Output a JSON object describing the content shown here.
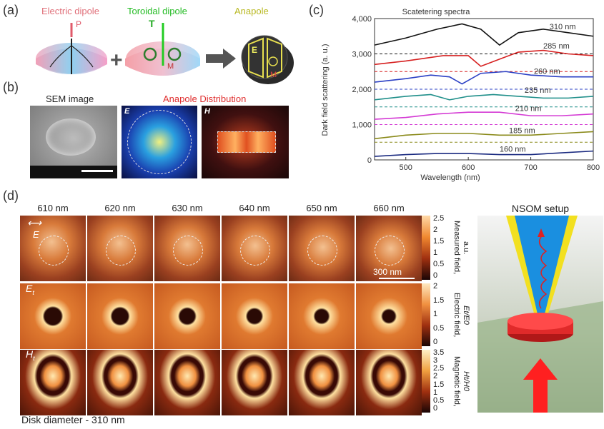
{
  "panel_a": {
    "label": "(a)",
    "electric_title": "Electric dipole",
    "toroidal_title": "Toroidal dipole",
    "anapole_title": "Anapole",
    "p_symbol": "P",
    "t_symbol": "T",
    "m_symbol": "M",
    "e_symbol": "E",
    "plus": "+"
  },
  "panel_b": {
    "label": "(b)",
    "sem_title": "SEM image",
    "anapole_title": "Anapole Distribution",
    "e_label": "E",
    "h_label": "H"
  },
  "panel_c": {
    "label": "(c)"
  },
  "panel_d": {
    "label": "(d)",
    "wavelengths": [
      "610 nm",
      "620 nm",
      "630 nm",
      "640 nm",
      "650 nm",
      "660 nm"
    ],
    "e_arrow_label": "E",
    "row2_label": "E",
    "row2_sub": "t",
    "row3_label": "H",
    "row3_sub": "t",
    "scalebar_label": "300 nm",
    "cb1_ticks": [
      "2.5",
      "2",
      "1.5",
      "1",
      "0.5",
      "0"
    ],
    "cb2_ticks": [
      "2",
      "1.5",
      "1",
      "0.5",
      "0"
    ],
    "cb3_ticks": [
      "3.5",
      "3",
      "2.5",
      "2",
      "1.5",
      "1",
      "0.5",
      "0"
    ],
    "cb1_title": "Measured field,",
    "cb1_unit": "a.u.",
    "cb2_title": "Electric field,",
    "cb2_unit": "Et/E0",
    "cb3_title": "Magnetic field,",
    "cb3_unit": "Ht/H0",
    "caption": "Disk diameter - 310 nm",
    "nsom_title": "NSOM setup"
  },
  "chart_data": {
    "type": "line",
    "title": "Scatetering spectra",
    "xlabel": "Wavelength (nm)",
    "ylabel": "Dark field scattering (a. u.)",
    "xlim": [
      450,
      800
    ],
    "ylim": [
      0,
      4000
    ],
    "xticks": [
      500,
      600,
      700,
      800
    ],
    "yticks": [
      0,
      1000,
      2000,
      3000,
      4000
    ],
    "ytick_labels": [
      "0",
      "1,000",
      "2,000",
      "3,000",
      "4,000"
    ],
    "series": [
      {
        "name": "310 nm",
        "color": "#111111",
        "baseline": 3000,
        "x": [
          450,
          500,
          550,
          590,
          620,
          650,
          680,
          720,
          760,
          800
        ],
        "y": [
          3250,
          3450,
          3700,
          3850,
          3700,
          3250,
          3600,
          3700,
          3600,
          3500
        ]
      },
      {
        "name": "285 nm",
        "color": "#d62020",
        "baseline": 2500,
        "x": [
          450,
          500,
          560,
          600,
          620,
          650,
          680,
          720,
          760,
          800
        ],
        "y": [
          2700,
          2800,
          2950,
          2950,
          2650,
          2850,
          3050,
          3100,
          3000,
          2950
        ]
      },
      {
        "name": "260 nm",
        "color": "#2a3fc4",
        "baseline": 2000,
        "x": [
          450,
          500,
          540,
          570,
          590,
          620,
          660,
          700,
          750,
          800
        ],
        "y": [
          2200,
          2300,
          2400,
          2350,
          2150,
          2450,
          2500,
          2400,
          2350,
          2350
        ]
      },
      {
        "name": "235 nm",
        "color": "#1f8f8a",
        "baseline": 1500,
        "x": [
          450,
          500,
          540,
          570,
          600,
          640,
          680,
          720,
          760,
          800
        ],
        "y": [
          1700,
          1800,
          1850,
          1700,
          1800,
          1850,
          1800,
          1750,
          1750,
          1800
        ]
      },
      {
        "name": "210 nm",
        "color": "#d43ad4",
        "baseline": 1000,
        "x": [
          450,
          500,
          550,
          600,
          650,
          700,
          750,
          800
        ],
        "y": [
          1150,
          1200,
          1300,
          1350,
          1350,
          1250,
          1250,
          1300
        ]
      },
      {
        "name": "185 nm",
        "color": "#8a8a1a",
        "baseline": 500,
        "x": [
          450,
          500,
          550,
          600,
          650,
          700,
          750,
          800
        ],
        "y": [
          600,
          700,
          750,
          750,
          700,
          700,
          750,
          800
        ]
      },
      {
        "name": "160 nm",
        "color": "#1a2a80",
        "baseline": null,
        "x": [
          450,
          500,
          550,
          600,
          650,
          700,
          750,
          800
        ],
        "y": [
          100,
          150,
          180,
          180,
          150,
          150,
          200,
          250
        ]
      }
    ],
    "labels": [
      {
        "text": "310 nm",
        "x": 730,
        "y": 3700
      },
      {
        "text": "285 nm",
        "x": 720,
        "y": 3150
      },
      {
        "text": "260 nm",
        "x": 705,
        "y": 2430
      },
      {
        "text": "235 nm",
        "x": 690,
        "y": 1900
      },
      {
        "text": "210 nm",
        "x": 675,
        "y": 1380
      },
      {
        "text": "185 nm",
        "x": 665,
        "y": 760
      },
      {
        "text": "160 nm",
        "x": 650,
        "y": 230
      }
    ]
  }
}
